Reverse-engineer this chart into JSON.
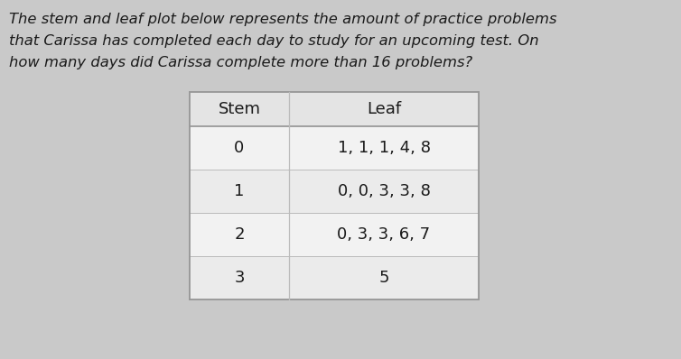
{
  "title_line1": "The stem and leaf plot below represents the amount of practice problems",
  "title_line2": "that Carissa has completed each day to study for an upcoming test. On",
  "title_line3": "how many days did Carissa complete more than 16 problems?",
  "header": [
    "Stem",
    "Leaf"
  ],
  "rows": [
    [
      "0",
      "1, 1, 1, 4, 8"
    ],
    [
      "1",
      "0, 0, 3, 3, 8"
    ],
    [
      "2",
      "0, 3, 3, 6, 7"
    ],
    [
      "3",
      "5"
    ]
  ],
  "page_bg": "#c9c9c9",
  "table_bg": "#f0f0f0",
  "table_border": "#999999",
  "text_color": "#1a1a1a",
  "title_fontsize": 11.8,
  "table_fontsize": 13
}
